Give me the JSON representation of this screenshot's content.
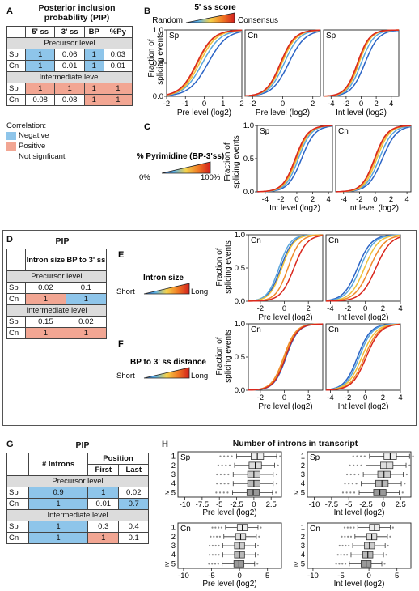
{
  "panelA": {
    "letter": "A",
    "title_line1": "Posterior inclusion",
    "title_line2": "probability (PIP)",
    "headers": [
      "5' ss",
      "3' ss",
      "BP",
      "%Py"
    ],
    "precursor_label": "Precursor level",
    "intermediate_label": "Intermediate level",
    "rows_precursor": [
      {
        "label": "Sp",
        "cells": [
          "1",
          "0.06",
          "1",
          "0.03"
        ],
        "shade": [
          "neg",
          "",
          "neg",
          ""
        ]
      },
      {
        "label": "Cn",
        "cells": [
          "1",
          "0.01",
          "1",
          "0.01"
        ],
        "shade": [
          "neg",
          "",
          "neg",
          ""
        ]
      }
    ],
    "rows_intermediate": [
      {
        "label": "Sp",
        "cells": [
          "1",
          "1",
          "1",
          "1"
        ],
        "shade": [
          "pos",
          "pos",
          "pos",
          "pos"
        ]
      },
      {
        "label": "Cn",
        "cells": [
          "0.08",
          "0.08",
          "1",
          "1"
        ],
        "shade": [
          "",
          "",
          "pos",
          "pos"
        ]
      }
    ],
    "legend_title": "Correlation:",
    "legend_negative": "Negative",
    "legend_positive": "Positive",
    "legend_ns": "Not signficant",
    "negative_color": "#8ec5ea",
    "positive_color": "#f2a693"
  },
  "panelB": {
    "letter": "B",
    "scale_title": "5' ss score",
    "scale_low": "Random",
    "scale_high": "Consensus",
    "ylabel": "Fraction of splicing events",
    "subplots": [
      {
        "species": "Sp",
        "xlabel": "Pre level (log2)",
        "xticks": [
          "-2",
          "-1",
          "0",
          "1",
          "2"
        ]
      },
      {
        "species": "Cn",
        "xlabel": "Pre level (log2)",
        "xticks": [
          "-2",
          "0",
          "2"
        ]
      },
      {
        "species": "Sp",
        "xlabel": "Int level (log2)",
        "xticks": [
          "-4",
          "-2",
          "0",
          "2",
          "4"
        ]
      }
    ],
    "yticks": [
      "0.0",
      "0.5",
      "1.0"
    ]
  },
  "panelC": {
    "letter": "C",
    "scale_title": "% Pyrimidine (BP-3'ss)",
    "scale_low": "0%",
    "scale_high": "100%",
    "ylabel": "Fraction of splicing events",
    "subplots": [
      {
        "species": "Sp",
        "xlabel": "Int level (log2)",
        "xticks": [
          "-4",
          "-2",
          "0",
          "2",
          "4"
        ]
      },
      {
        "species": "Cn",
        "xlabel": "Int level (log2)",
        "xticks": [
          "-4",
          "-2",
          "0",
          "2",
          "4"
        ]
      }
    ],
    "yticks": [
      "0.0",
      "0.5",
      "1.0"
    ]
  },
  "panelD": {
    "letter": "D",
    "title": "PIP",
    "headers": [
      "Intron size",
      "BP to 3' ss"
    ],
    "precursor_label": "Precursor level",
    "intermediate_label": "Intermediate level",
    "rows_precursor": [
      {
        "label": "Sp",
        "cells": [
          "0.02",
          "0.1"
        ],
        "shade": [
          "",
          ""
        ]
      },
      {
        "label": "Cn",
        "cells": [
          "1",
          "1"
        ],
        "shade": [
          "pos",
          "neg"
        ]
      }
    ],
    "rows_intermediate": [
      {
        "label": "Sp",
        "cells": [
          "0.15",
          "0.02"
        ],
        "shade": [
          "",
          ""
        ]
      },
      {
        "label": "Cn",
        "cells": [
          "1",
          "1"
        ],
        "shade": [
          "pos",
          "pos"
        ]
      }
    ]
  },
  "panelE": {
    "letter": "E",
    "scale_title": "Intron size",
    "scale_low": "Short",
    "scale_high": "Long",
    "ylabel": "Fraction of splicing events",
    "subplots": [
      {
        "species": "Cn",
        "xlabel": "Pre level (log2)",
        "xticks": [
          "-2",
          "0",
          "2"
        ]
      },
      {
        "species": "Cn",
        "xlabel": "Int level (log2)",
        "xticks": [
          "-4",
          "-2",
          "0",
          "2",
          "4"
        ]
      }
    ],
    "yticks": [
      "0.0",
      "0.5",
      "1.0"
    ]
  },
  "panelF": {
    "letter": "F",
    "scale_title": "BP to 3' ss distance",
    "scale_low": "Short",
    "scale_high": "Long",
    "ylabel": "Fraction of splicing events",
    "subplots": [
      {
        "species": "Cn",
        "xlabel": "Pre level (log2)",
        "xticks": [
          "-2",
          "0",
          "2"
        ]
      },
      {
        "species": "Cn",
        "xlabel": "Int level (log2)",
        "xticks": [
          "-4",
          "-2",
          "0",
          "2",
          "4"
        ]
      }
    ],
    "yticks": [
      "0.0",
      "0.5",
      "1.0"
    ]
  },
  "panelG": {
    "letter": "G",
    "title": "PIP",
    "headers": [
      "# Introns",
      "Position"
    ],
    "subheaders": [
      "First",
      "Last"
    ],
    "precursor_label": "Precursor level",
    "intermediate_label": "Intermediate level",
    "rows_precursor": [
      {
        "label": "Sp",
        "cells": [
          "0.9",
          "1",
          "0.02"
        ],
        "shade": [
          "neg",
          "neg",
          ""
        ]
      },
      {
        "label": "Cn",
        "cells": [
          "1",
          "0.01",
          "0.7"
        ],
        "shade": [
          "neg",
          "",
          "neg"
        ]
      }
    ],
    "rows_intermediate": [
      {
        "label": "Sp",
        "cells": [
          "1",
          "0.3",
          "0.4"
        ],
        "shade": [
          "neg",
          "",
          ""
        ]
      },
      {
        "label": "Cn",
        "cells": [
          "1",
          "1",
          "0.1"
        ],
        "shade": [
          "neg",
          "pos",
          ""
        ]
      }
    ]
  },
  "panelH": {
    "letter": "H",
    "title": "Number of introns in transcript",
    "row_labels": [
      "1",
      "2",
      "3",
      "4",
      "≥ 5"
    ],
    "subplots": [
      {
        "species": "Sp",
        "xlabel": "Pre level (log2)",
        "xticks": [
          "-10",
          "-7.5",
          "-5",
          "-2.5",
          "0",
          "2.5"
        ]
      },
      {
        "species": "Sp",
        "xlabel": "Int level (log2)",
        "xticks": [
          "-10",
          "-7.5",
          "-5",
          "-2.5",
          "0",
          "2.5"
        ]
      },
      {
        "species": "Cn",
        "xlabel": "Pre level (log2)",
        "xticks": [
          "-10",
          "-5",
          "0",
          "5"
        ]
      },
      {
        "species": "Cn",
        "xlabel": "Int level (log2)",
        "xticks": [
          "-10",
          "-5",
          "0",
          "5"
        ]
      }
    ]
  },
  "colors": {
    "series": [
      "#2b64c6",
      "#5aa6dc",
      "#f0c23a",
      "#f08a2a",
      "#d9261c"
    ],
    "gradient": [
      "#2b64c6",
      "#5ab0e6",
      "#f5d24a",
      "#f07a24",
      "#d21f1c"
    ]
  }
}
